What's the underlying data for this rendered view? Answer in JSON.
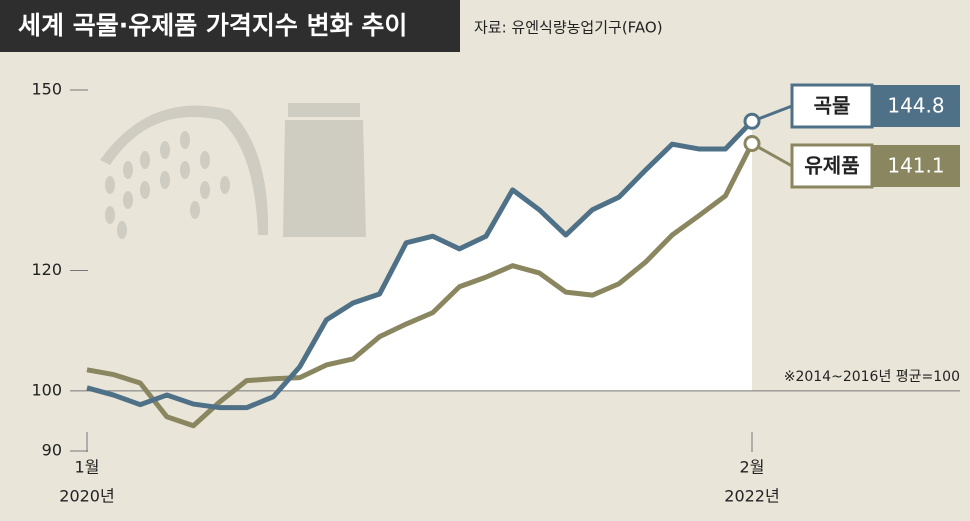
{
  "chart_data": {
    "type": "line",
    "title": "세계 곡물·유제품 가격지수 변화 추이",
    "source": "자료: 유엔식량농업기구(FAO)",
    "note": "※2014~2016년 평균=100",
    "categories": [
      "1월",
      null,
      null,
      null,
      null,
      null,
      null,
      null,
      null,
      null,
      null,
      null,
      null,
      null,
      null,
      null,
      null,
      null,
      null,
      null,
      null,
      null,
      null,
      null,
      null,
      "2월"
    ],
    "category_years": [
      "2020년",
      null,
      null,
      null,
      null,
      null,
      null,
      null,
      null,
      null,
      null,
      null,
      null,
      null,
      null,
      null,
      null,
      null,
      null,
      null,
      null,
      null,
      null,
      null,
      null,
      "2022년"
    ],
    "series": [
      {
        "name": "곡물",
        "color": "#4f7187",
        "values": [
          100.5,
          99.3,
          97.7,
          99.3,
          97.8,
          97.2,
          97.2,
          99.0,
          104.0,
          111.8,
          114.6,
          116.1,
          124.6,
          125.7,
          123.6,
          125.7,
          133.4,
          130.1,
          125.9,
          130.1,
          132.2,
          136.7,
          141.0,
          140.2,
          140.2,
          144.8
        ]
      },
      {
        "name": "유제품",
        "color": "#8a8660",
        "values": [
          103.5,
          102.7,
          101.3,
          95.7,
          94.2,
          98.2,
          101.7,
          102.0,
          102.2,
          104.3,
          105.3,
          109.0,
          111.1,
          113.0,
          117.3,
          118.9,
          120.8,
          119.6,
          116.4,
          115.9,
          117.8,
          121.4,
          125.9,
          129.1,
          132.4,
          141.1
        ]
      }
    ],
    "ylim": [
      90,
      150
    ],
    "yticks": [
      90,
      100,
      120,
      150
    ],
    "reference_line": 100
  }
}
